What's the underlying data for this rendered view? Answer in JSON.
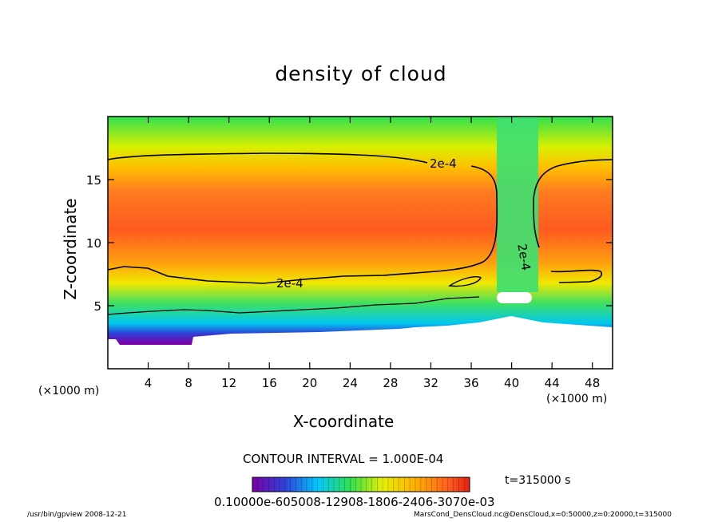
{
  "chart_data": {
    "type": "heatmap",
    "title": "density of cloud",
    "xlabel": "X-coordinate",
    "ylabel": "Z-coordinate",
    "x_unit": "(×1000 m)",
    "x_unit_right": "(×1000 m)",
    "xlim": [
      0,
      50
    ],
    "ylim": [
      0,
      20
    ],
    "x_ticks": [
      4,
      8,
      12,
      16,
      20,
      24,
      28,
      32,
      36,
      40,
      44,
      48
    ],
    "y_ticks": [
      5,
      10,
      15
    ],
    "contour_label": "2e-4",
    "contour_level": 0.0002,
    "contour_interval_text": "CONTOUR INTERVAL = 1.000E-04",
    "time_text": "t=315000 s",
    "colorbar_text": "0.10000e-605008-12908-1806-2406-3070e-03",
    "colormap": [
      "#7a00a8",
      "#3040d8",
      "#00c8ff",
      "#30e050",
      "#e8f000",
      "#ffb000",
      "#ff6020",
      "#e82010"
    ],
    "footer_left": "/usr/bin/gpview    2008-12-21",
    "footer_right": "MarsCond_DensCloud.nc@DensCloud,x=0:50000,z=0:20000,t=315000"
  }
}
